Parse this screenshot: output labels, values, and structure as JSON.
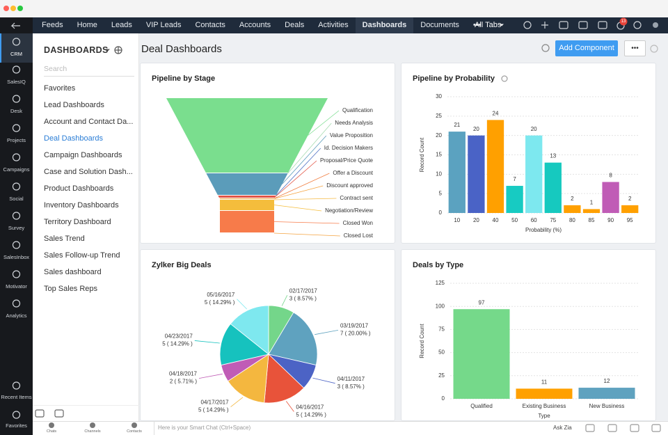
{
  "nav": {
    "items": [
      "Feeds",
      "Home",
      "Leads",
      "VIP Leads",
      "Contacts",
      "Accounts",
      "Deals",
      "Activities",
      "Dashboards",
      "Documents",
      "•••"
    ],
    "active": 8,
    "all_tabs": "All Tabs",
    "badge": 13
  },
  "rail": {
    "items": [
      "CRM",
      "SalesIQ",
      "Desk",
      "Projects",
      "Campaigns",
      "Social",
      "Survey",
      "SalesInbox",
      "Motivator",
      "Analytics"
    ],
    "active": 0,
    "bottom": [
      "Recent Items",
      "Favorites"
    ]
  },
  "sidebar": {
    "title": "DASHBOARDS",
    "search": "Search",
    "items": [
      "Favorites",
      "Lead Dashboards",
      "Account and Contact Da...",
      "Deal Dashboards",
      "Campaign Dashboards",
      "Case and Solution Dash...",
      "Product Dashboards",
      "Inventory Dashboards",
      "Territory Dashboard",
      "Sales Trend",
      "Sales Follow-up Trend",
      "Sales dashboard",
      "Top Sales Reps"
    ],
    "active": 3
  },
  "header": {
    "title": "Deal Dashboards",
    "button": "Add Component",
    "more": "•••"
  },
  "chart_data": [
    {
      "type": "funnel",
      "title": "Pipeline by Stage",
      "categories": [
        "Qualification",
        "Needs Analysis",
        "Value Proposition",
        "Id. Decision Makers",
        "Proposal/Price Quote",
        "Offer a Discount",
        "Discount approved",
        "Contract sent",
        "Negotiation/Review",
        "Closed Won",
        "Closed Lost"
      ],
      "values": [
        54,
        0,
        16,
        0,
        2,
        0,
        1,
        0,
        8,
        16,
        0
      ],
      "colors": [
        "#7ade8e",
        "#a6dcb0",
        "#5b9cba",
        "#4c6fc4",
        "#e35546",
        "#f07c3e",
        "#f5a340",
        "#f5b942",
        "#f4bd3c",
        "#f77b4a",
        "#f4a340"
      ]
    },
    {
      "type": "bar",
      "title": "Pipeline by Probability",
      "x_label": "Probability (%)",
      "y_label": "Record Count",
      "categories": [
        "10",
        "20",
        "40",
        "50",
        "60",
        "75",
        "80",
        "85",
        "90",
        "95"
      ],
      "values": [
        21,
        20,
        24,
        7,
        20,
        13,
        2,
        1,
        8,
        2
      ],
      "colors": [
        "#5ba2c0",
        "#4a63c6",
        "#ffa000",
        "#17cbc2",
        "#7de8ef",
        "#16c9bf",
        "#ffa000",
        "#ffa000",
        "#c05cb6",
        "#ffa000"
      ],
      "ylim": [
        0,
        30
      ],
      "yticks": [
        0,
        5,
        10,
        15,
        20,
        25,
        30
      ],
      "grid": true
    },
    {
      "type": "pie",
      "title": "Zylker Big Deals",
      "categories": [
        "02/17/2017",
        "03/19/2017",
        "04/11/2017",
        "04/16/2017",
        "04/17/2017",
        "04/18/2017",
        "04/23/2017",
        "05/16/2017"
      ],
      "values": [
        3,
        7,
        3,
        5,
        5,
        2,
        5,
        5
      ],
      "value_labels": [
        "3 ( 8.57% )",
        "7 ( 20.00% )",
        "3 ( 8.57% )",
        "5 ( 14.29% )",
        "5 ( 14.29% )",
        "2 ( 5.71% )",
        "5 ( 14.29% )",
        "5 ( 14.29% )"
      ],
      "colors": [
        "#74d68a",
        "#5fa2bf",
        "#4c63c5",
        "#e8533a",
        "#f4b73f",
        "#c05cb6",
        "#16c2be",
        "#7ee8ef"
      ]
    },
    {
      "type": "bar",
      "title": "Deals by Type",
      "x_label": "Type",
      "y_label": "Record Count",
      "categories": [
        "Qualified",
        "Existing Business",
        "New Business"
      ],
      "values": [
        97,
        11,
        12
      ],
      "colors": [
        "#75d98a",
        "#ffa000",
        "#5fa2bf"
      ],
      "ylim": [
        0,
        125
      ],
      "yticks": [
        0,
        25,
        50,
        75,
        100,
        125
      ],
      "grid": true
    }
  ],
  "footer": {
    "items": [
      "Chats",
      "Channels",
      "Contacts"
    ],
    "placeholder": "Here is your Smart Chat (Ctrl+Space)",
    "ask": "Ask Zia"
  }
}
